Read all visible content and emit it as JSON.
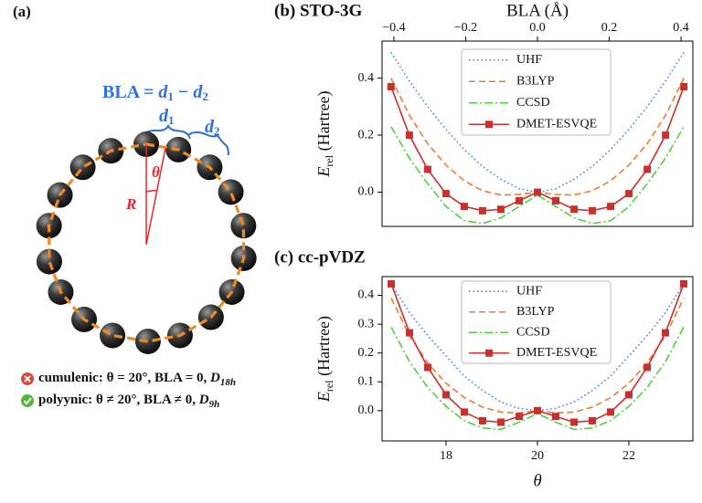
{
  "panel_a": {
    "label": "(a)",
    "formula": {
      "lhs": "BLA = ",
      "d1": "d",
      "d1_sub": "1",
      "minus": " − ",
      "d2": "d",
      "d2_sub": "2"
    },
    "d1": {
      "symbol": "d",
      "sub": "1"
    },
    "d2": {
      "symbol": "d",
      "sub": "2"
    },
    "theta": "θ",
    "radius": "R",
    "cases": [
      {
        "name": "cumulenic:",
        "condition": " θ = 20°, BLA = 0, ",
        "symmetry": "D",
        "symmetry_sub": "18h"
      },
      {
        "name": "polyynic:",
        "condition": "   θ ≠ 20°, BLA ≠ 0, ",
        "symmetry": "D",
        "symmetry_sub": "9h"
      }
    ]
  },
  "chart_data": [
    {
      "type": "line",
      "title": "(b) STO-3G",
      "xlabel": "BLA (Å)",
      "xaxis": "top",
      "ylabel": {
        "symbol": "E",
        "subscript": "rel",
        "unit": " (Hartree)"
      },
      "x": [
        -0.408,
        -0.357,
        -0.306,
        -0.255,
        -0.204,
        -0.153,
        -0.102,
        -0.051,
        0,
        0.051,
        0.102,
        0.153,
        0.204,
        0.255,
        0.306,
        0.357,
        0.408
      ],
      "xlim": [
        -0.433,
        0.433
      ],
      "xticks": [
        {
          "value": -0.4,
          "label": "−0.4"
        },
        {
          "value": -0.2,
          "label": "−0.2"
        },
        {
          "value": 0,
          "label": "0.0"
        },
        {
          "value": 0.2,
          "label": "0.2"
        },
        {
          "value": 0.4,
          "label": "0.4"
        }
      ],
      "ylim": [
        -0.12,
        0.53
      ],
      "yticks": [
        {
          "value": 0,
          "label": "0.0"
        },
        0.2,
        0.4
      ],
      "grid": false,
      "legend": "upper center",
      "series": [
        {
          "name": "UHF",
          "color": "#3f7fd6",
          "linestyle": "dotted",
          "values": [
            0.49,
            0.39,
            0.3,
            0.22,
            0.15,
            0.09,
            0.045,
            0.012,
            0,
            0.012,
            0.045,
            0.09,
            0.15,
            0.22,
            0.3,
            0.39,
            0.49
          ]
        },
        {
          "name": "B3LYP",
          "color": "#f07a2a",
          "linestyle": "dashed",
          "values": [
            0.4,
            0.27,
            0.17,
            0.095,
            0.04,
            0.005,
            -0.01,
            -0.008,
            0,
            -0.008,
            -0.01,
            0.005,
            0.04,
            0.095,
            0.17,
            0.27,
            0.4
          ]
        },
        {
          "name": "CCSD",
          "color": "#4fd13a",
          "linestyle": "dashdot",
          "values": [
            0.23,
            0.12,
            0.03,
            -0.05,
            -0.1,
            -0.11,
            -0.09,
            -0.05,
            -0.01,
            -0.05,
            -0.09,
            -0.11,
            -0.1,
            -0.05,
            0.03,
            0.12,
            0.23
          ]
        },
        {
          "name": "DMET-ESVQE",
          "color": "#c8302e",
          "linestyle": "solid",
          "marker": "square",
          "values": [
            0.37,
            0.2,
            0.08,
            -0.005,
            -0.05,
            -0.065,
            -0.06,
            -0.03,
            0,
            -0.03,
            -0.06,
            -0.065,
            -0.05,
            -0.005,
            0.08,
            0.2,
            0.37
          ]
        }
      ]
    },
    {
      "type": "line",
      "title": "(c) cc-pVDZ",
      "xlabel": "θ",
      "xaxis": "bottom",
      "ylabel": {
        "symbol": "E",
        "subscript": "rel",
        "unit": " (Hartree)"
      },
      "x": [
        16.8,
        17.2,
        17.6,
        18.0,
        18.4,
        18.8,
        19.2,
        19.6,
        20.0,
        20.4,
        20.8,
        21.2,
        21.6,
        22.0,
        22.4,
        22.8,
        23.2
      ],
      "xlim": [
        16.6,
        23.4
      ],
      "xticks": [
        18,
        20,
        22
      ],
      "ylim": [
        -0.105,
        0.465
      ],
      "yticks": [
        {
          "value": 0,
          "label": "0.0"
        },
        0.1,
        0.2,
        0.3,
        0.4
      ],
      "grid": false,
      "legend": "upper center",
      "series": [
        {
          "name": "UHF",
          "color": "#3f7fd6",
          "linestyle": "dotted",
          "values": [
            0.44,
            0.34,
            0.26,
            0.19,
            0.12,
            0.07,
            0.03,
            0.008,
            0,
            0.008,
            0.03,
            0.07,
            0.12,
            0.19,
            0.26,
            0.34,
            0.44
          ]
        },
        {
          "name": "B3LYP",
          "color": "#f07a2a",
          "linestyle": "dashed",
          "values": [
            0.39,
            0.26,
            0.165,
            0.095,
            0.045,
            0.012,
            -0.005,
            -0.008,
            0,
            -0.008,
            -0.005,
            0.012,
            0.045,
            0.095,
            0.165,
            0.26,
            0.39
          ]
        },
        {
          "name": "CCSD",
          "color": "#4fd13a",
          "linestyle": "dashdot",
          "values": [
            0.29,
            0.17,
            0.08,
            0.015,
            -0.035,
            -0.06,
            -0.065,
            -0.04,
            -0.01,
            -0.04,
            -0.065,
            -0.06,
            -0.035,
            0.015,
            0.08,
            0.17,
            0.29
          ]
        },
        {
          "name": "DMET-ESVQE",
          "color": "#c8302e",
          "linestyle": "solid",
          "marker": "square",
          "values": [
            0.44,
            0.27,
            0.15,
            0.055,
            -0.005,
            -0.035,
            -0.04,
            -0.02,
            0,
            -0.02,
            -0.04,
            -0.035,
            -0.005,
            0.055,
            0.15,
            0.27,
            0.44
          ]
        }
      ]
    }
  ]
}
